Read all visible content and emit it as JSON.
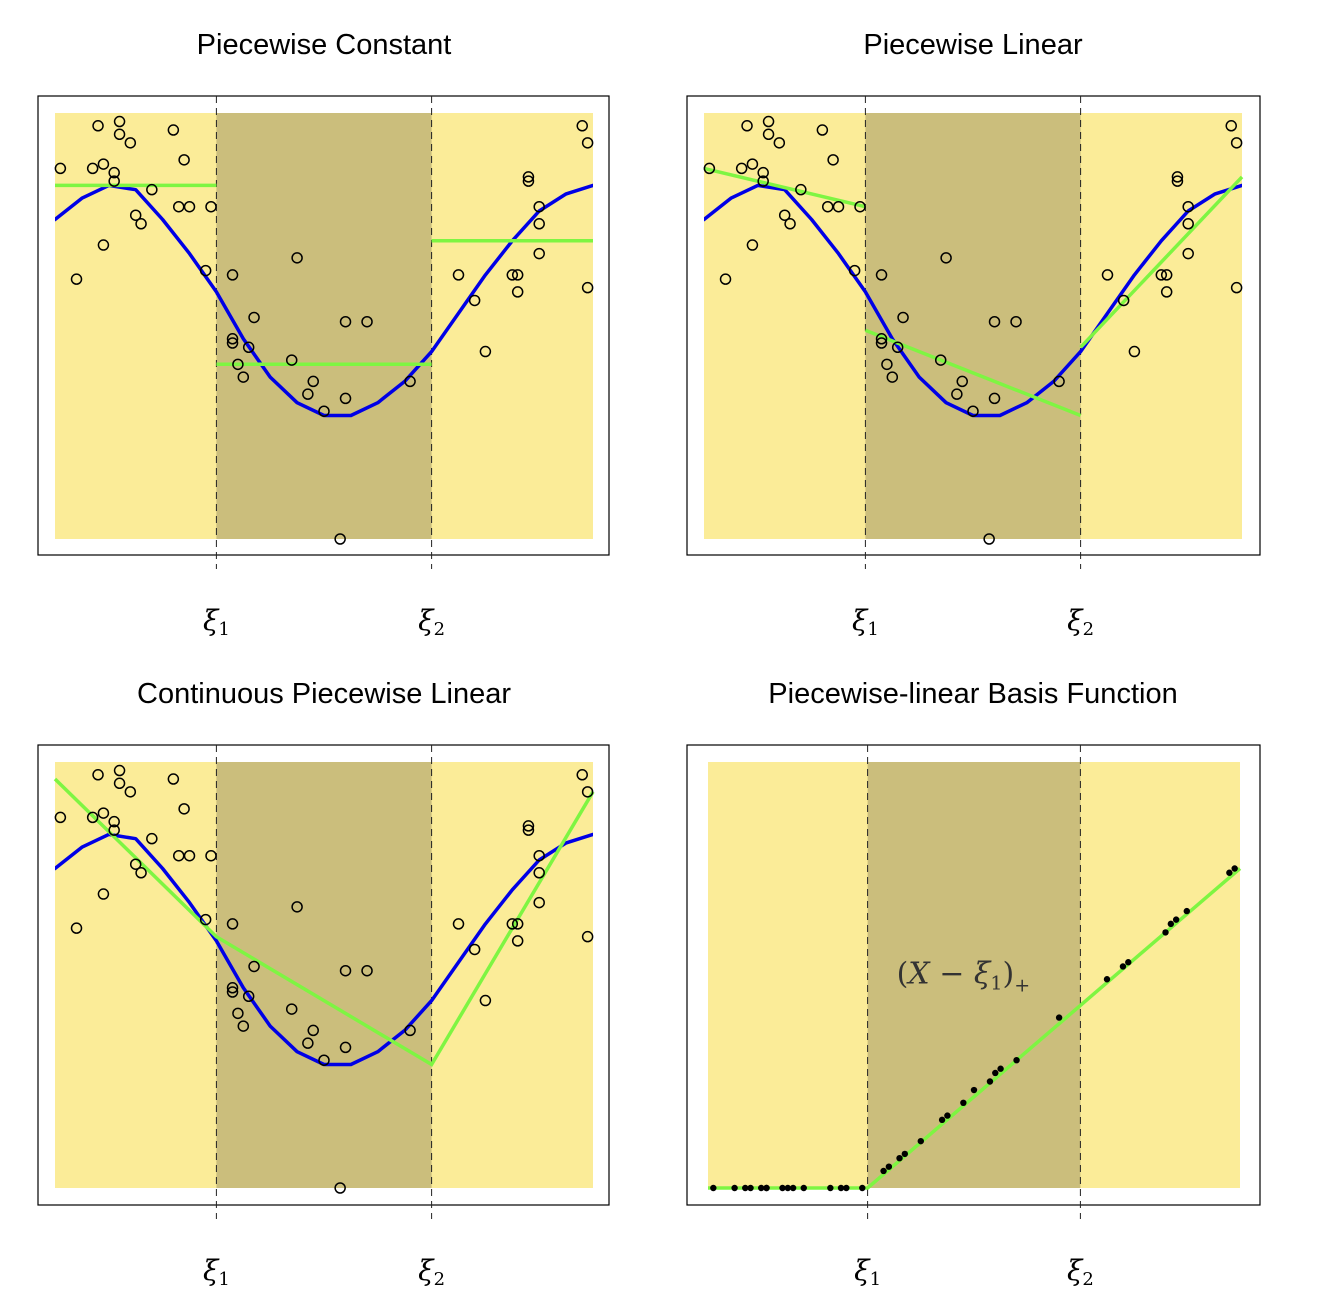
{
  "colors": {
    "outer_region": "#fbec98",
    "middle_region": "#cbbe7c",
    "true_function": "#0000e6",
    "fit": "#7ef542",
    "points": "#000000",
    "frame": "#000000"
  },
  "chart_data": [
    {
      "type": "scatter",
      "title": "Piecewise Constant",
      "xlim": [
        0,
        1
      ],
      "ylim": [
        0,
        1
      ],
      "knots": [
        {
          "x": 0.3,
          "symbol": "ξ",
          "sub": "1"
        },
        {
          "x": 0.7,
          "symbol": "ξ",
          "sub": "2"
        }
      ],
      "points_style": "open",
      "points": [
        [
          0.01,
          0.87
        ],
        [
          0.04,
          0.61
        ],
        [
          0.07,
          0.87
        ],
        [
          0.08,
          0.97
        ],
        [
          0.09,
          0.88
        ],
        [
          0.12,
          0.95
        ],
        [
          0.09,
          0.69
        ],
        [
          0.11,
          0.84
        ],
        [
          0.14,
          0.93
        ],
        [
          0.12,
          0.98
        ],
        [
          0.11,
          0.86
        ],
        [
          0.15,
          0.76
        ],
        [
          0.16,
          0.74
        ],
        [
          0.18,
          0.82
        ],
        [
          0.22,
          0.96
        ],
        [
          0.24,
          0.89
        ],
        [
          0.23,
          0.78
        ],
        [
          0.25,
          0.78
        ],
        [
          0.29,
          0.78
        ],
        [
          0.28,
          0.63
        ],
        [
          0.33,
          0.62
        ],
        [
          0.33,
          0.47
        ],
        [
          0.33,
          0.46
        ],
        [
          0.36,
          0.45
        ],
        [
          0.37,
          0.52
        ],
        [
          0.34,
          0.41
        ],
        [
          0.35,
          0.38
        ],
        [
          0.45,
          0.66
        ],
        [
          0.44,
          0.42
        ],
        [
          0.48,
          0.37
        ],
        [
          0.47,
          0.34
        ],
        [
          0.5,
          0.3
        ],
        [
          0.53,
          0.0
        ],
        [
          0.54,
          0.51
        ],
        [
          0.54,
          0.33
        ],
        [
          0.58,
          0.51
        ],
        [
          0.66,
          0.37
        ],
        [
          0.75,
          0.62
        ],
        [
          0.78,
          0.56
        ],
        [
          0.8,
          0.44
        ],
        [
          0.85,
          0.62
        ],
        [
          0.86,
          0.62
        ],
        [
          0.86,
          0.58
        ],
        [
          0.88,
          0.84
        ],
        [
          0.88,
          0.85
        ],
        [
          0.9,
          0.78
        ],
        [
          0.9,
          0.74
        ],
        [
          0.9,
          0.67
        ],
        [
          0.98,
          0.97
        ],
        [
          0.99,
          0.93
        ],
        [
          0.99,
          0.59
        ]
      ],
      "truth": [
        [
          0.0,
          0.75
        ],
        [
          0.05,
          0.8
        ],
        [
          0.1,
          0.83
        ],
        [
          0.15,
          0.82
        ],
        [
          0.2,
          0.75
        ],
        [
          0.25,
          0.67
        ],
        [
          0.3,
          0.58
        ],
        [
          0.35,
          0.47
        ],
        [
          0.4,
          0.38
        ],
        [
          0.45,
          0.32
        ],
        [
          0.5,
          0.29
        ],
        [
          0.55,
          0.29
        ],
        [
          0.6,
          0.32
        ],
        [
          0.65,
          0.37
        ],
        [
          0.7,
          0.44
        ],
        [
          0.75,
          0.53
        ],
        [
          0.8,
          0.62
        ],
        [
          0.85,
          0.7
        ],
        [
          0.9,
          0.77
        ],
        [
          0.95,
          0.81
        ],
        [
          1.0,
          0.83
        ]
      ],
      "fit_segments": [
        [
          [
            0.0,
            0.83
          ],
          [
            0.3,
            0.83
          ]
        ],
        [
          [
            0.3,
            0.41
          ],
          [
            0.7,
            0.41
          ]
        ],
        [
          [
            0.7,
            0.7
          ],
          [
            1.0,
            0.7
          ]
        ]
      ]
    },
    {
      "type": "scatter",
      "title": "Piecewise Linear",
      "xlim": [
        0,
        1
      ],
      "ylim": [
        0,
        1
      ],
      "knots": [
        {
          "x": 0.3,
          "symbol": "ξ",
          "sub": "1"
        },
        {
          "x": 0.7,
          "symbol": "ξ",
          "sub": "2"
        }
      ],
      "points_style": "open",
      "points": [
        [
          0.01,
          0.87
        ],
        [
          0.04,
          0.61
        ],
        [
          0.07,
          0.87
        ],
        [
          0.08,
          0.97
        ],
        [
          0.09,
          0.88
        ],
        [
          0.12,
          0.95
        ],
        [
          0.09,
          0.69
        ],
        [
          0.11,
          0.84
        ],
        [
          0.14,
          0.93
        ],
        [
          0.12,
          0.98
        ],
        [
          0.11,
          0.86
        ],
        [
          0.15,
          0.76
        ],
        [
          0.16,
          0.74
        ],
        [
          0.18,
          0.82
        ],
        [
          0.22,
          0.96
        ],
        [
          0.24,
          0.89
        ],
        [
          0.23,
          0.78
        ],
        [
          0.25,
          0.78
        ],
        [
          0.29,
          0.78
        ],
        [
          0.28,
          0.63
        ],
        [
          0.33,
          0.62
        ],
        [
          0.33,
          0.47
        ],
        [
          0.33,
          0.46
        ],
        [
          0.36,
          0.45
        ],
        [
          0.37,
          0.52
        ],
        [
          0.34,
          0.41
        ],
        [
          0.35,
          0.38
        ],
        [
          0.45,
          0.66
        ],
        [
          0.44,
          0.42
        ],
        [
          0.48,
          0.37
        ],
        [
          0.47,
          0.34
        ],
        [
          0.5,
          0.3
        ],
        [
          0.53,
          0.0
        ],
        [
          0.54,
          0.51
        ],
        [
          0.54,
          0.33
        ],
        [
          0.58,
          0.51
        ],
        [
          0.66,
          0.37
        ],
        [
          0.75,
          0.62
        ],
        [
          0.78,
          0.56
        ],
        [
          0.8,
          0.44
        ],
        [
          0.85,
          0.62
        ],
        [
          0.86,
          0.62
        ],
        [
          0.86,
          0.58
        ],
        [
          0.88,
          0.84
        ],
        [
          0.88,
          0.85
        ],
        [
          0.9,
          0.78
        ],
        [
          0.9,
          0.74
        ],
        [
          0.9,
          0.67
        ],
        [
          0.98,
          0.97
        ],
        [
          0.99,
          0.93
        ],
        [
          0.99,
          0.59
        ]
      ],
      "truth": [
        [
          0.0,
          0.75
        ],
        [
          0.05,
          0.8
        ],
        [
          0.1,
          0.83
        ],
        [
          0.15,
          0.82
        ],
        [
          0.2,
          0.75
        ],
        [
          0.25,
          0.67
        ],
        [
          0.3,
          0.58
        ],
        [
          0.35,
          0.47
        ],
        [
          0.4,
          0.38
        ],
        [
          0.45,
          0.32
        ],
        [
          0.5,
          0.29
        ],
        [
          0.55,
          0.29
        ],
        [
          0.6,
          0.32
        ],
        [
          0.65,
          0.37
        ],
        [
          0.7,
          0.44
        ],
        [
          0.75,
          0.53
        ],
        [
          0.8,
          0.62
        ],
        [
          0.85,
          0.7
        ],
        [
          0.9,
          0.77
        ],
        [
          0.95,
          0.81
        ],
        [
          1.0,
          0.83
        ]
      ],
      "fit_segments": [
        [
          [
            0.0,
            0.87
          ],
          [
            0.3,
            0.78
          ]
        ],
        [
          [
            0.3,
            0.49
          ],
          [
            0.7,
            0.29
          ]
        ],
        [
          [
            0.7,
            0.45
          ],
          [
            1.0,
            0.85
          ]
        ]
      ]
    },
    {
      "type": "scatter",
      "title": "Continuous Piecewise Linear",
      "xlim": [
        0,
        1
      ],
      "ylim": [
        0,
        1
      ],
      "knots": [
        {
          "x": 0.3,
          "symbol": "ξ",
          "sub": "1"
        },
        {
          "x": 0.7,
          "symbol": "ξ",
          "sub": "2"
        }
      ],
      "points_style": "open",
      "points": [
        [
          0.01,
          0.87
        ],
        [
          0.04,
          0.61
        ],
        [
          0.07,
          0.87
        ],
        [
          0.08,
          0.97
        ],
        [
          0.09,
          0.88
        ],
        [
          0.12,
          0.95
        ],
        [
          0.09,
          0.69
        ],
        [
          0.11,
          0.84
        ],
        [
          0.14,
          0.93
        ],
        [
          0.12,
          0.98
        ],
        [
          0.11,
          0.86
        ],
        [
          0.15,
          0.76
        ],
        [
          0.16,
          0.74
        ],
        [
          0.18,
          0.82
        ],
        [
          0.22,
          0.96
        ],
        [
          0.24,
          0.89
        ],
        [
          0.23,
          0.78
        ],
        [
          0.25,
          0.78
        ],
        [
          0.29,
          0.78
        ],
        [
          0.28,
          0.63
        ],
        [
          0.33,
          0.62
        ],
        [
          0.33,
          0.47
        ],
        [
          0.33,
          0.46
        ],
        [
          0.36,
          0.45
        ],
        [
          0.37,
          0.52
        ],
        [
          0.34,
          0.41
        ],
        [
          0.35,
          0.38
        ],
        [
          0.45,
          0.66
        ],
        [
          0.44,
          0.42
        ],
        [
          0.48,
          0.37
        ],
        [
          0.47,
          0.34
        ],
        [
          0.5,
          0.3
        ],
        [
          0.53,
          0.0
        ],
        [
          0.54,
          0.51
        ],
        [
          0.54,
          0.33
        ],
        [
          0.58,
          0.51
        ],
        [
          0.66,
          0.37
        ],
        [
          0.75,
          0.62
        ],
        [
          0.78,
          0.56
        ],
        [
          0.8,
          0.44
        ],
        [
          0.85,
          0.62
        ],
        [
          0.86,
          0.62
        ],
        [
          0.86,
          0.58
        ],
        [
          0.88,
          0.84
        ],
        [
          0.88,
          0.85
        ],
        [
          0.9,
          0.78
        ],
        [
          0.9,
          0.74
        ],
        [
          0.9,
          0.67
        ],
        [
          0.98,
          0.97
        ],
        [
          0.99,
          0.93
        ],
        [
          0.99,
          0.59
        ]
      ],
      "truth": [
        [
          0.0,
          0.75
        ],
        [
          0.05,
          0.8
        ],
        [
          0.1,
          0.83
        ],
        [
          0.15,
          0.82
        ],
        [
          0.2,
          0.75
        ],
        [
          0.25,
          0.67
        ],
        [
          0.3,
          0.58
        ],
        [
          0.35,
          0.47
        ],
        [
          0.4,
          0.38
        ],
        [
          0.45,
          0.32
        ],
        [
          0.5,
          0.29
        ],
        [
          0.55,
          0.29
        ],
        [
          0.6,
          0.32
        ],
        [
          0.65,
          0.37
        ],
        [
          0.7,
          0.44
        ],
        [
          0.75,
          0.53
        ],
        [
          0.8,
          0.62
        ],
        [
          0.85,
          0.7
        ],
        [
          0.9,
          0.77
        ],
        [
          0.95,
          0.81
        ],
        [
          1.0,
          0.83
        ]
      ],
      "fit_segments": [
        [
          [
            0.0,
            0.96
          ],
          [
            0.3,
            0.59
          ],
          [
            0.7,
            0.29
          ],
          [
            1.0,
            0.93
          ]
        ]
      ]
    },
    {
      "type": "scatter",
      "title": "Piecewise-linear Basis Function",
      "xlim": [
        0,
        1
      ],
      "ylim": [
        0,
        1
      ],
      "knots": [
        {
          "x": 0.3,
          "symbol": "ξ",
          "sub": "1"
        },
        {
          "x": 0.7,
          "symbol": "ξ",
          "sub": "2"
        }
      ],
      "annotation": {
        "x": 0.48,
        "y": 0.48,
        "pre": "(",
        "var": "X",
        "mid": " − ",
        "sym": "ξ",
        "sub": "1",
        "post": ")",
        "plus": "+"
      },
      "points_style": "filled",
      "points": [
        [
          0.01,
          0.0
        ],
        [
          0.05,
          0.0
        ],
        [
          0.07,
          0.0
        ],
        [
          0.08,
          0.0
        ],
        [
          0.1,
          0.0
        ],
        [
          0.11,
          0.0
        ],
        [
          0.11,
          0.0
        ],
        [
          0.14,
          0.0
        ],
        [
          0.15,
          0.0
        ],
        [
          0.16,
          0.0
        ],
        [
          0.18,
          0.0
        ],
        [
          0.23,
          0.0
        ],
        [
          0.25,
          0.0
        ],
        [
          0.26,
          0.0
        ],
        [
          0.29,
          0.0
        ],
        [
          0.33,
          0.04
        ],
        [
          0.34,
          0.05
        ],
        [
          0.36,
          0.07
        ],
        [
          0.37,
          0.08
        ],
        [
          0.4,
          0.11
        ],
        [
          0.44,
          0.16
        ],
        [
          0.45,
          0.17
        ],
        [
          0.48,
          0.2
        ],
        [
          0.5,
          0.23
        ],
        [
          0.53,
          0.25
        ],
        [
          0.54,
          0.27
        ],
        [
          0.55,
          0.28
        ],
        [
          0.58,
          0.3
        ],
        [
          0.66,
          0.4
        ],
        [
          0.75,
          0.49
        ],
        [
          0.78,
          0.52
        ],
        [
          0.79,
          0.53
        ],
        [
          0.86,
          0.6
        ],
        [
          0.87,
          0.62
        ],
        [
          0.88,
          0.63
        ],
        [
          0.9,
          0.65
        ],
        [
          0.98,
          0.74
        ],
        [
          0.99,
          0.75
        ]
      ],
      "fit_segments": [
        [
          [
            0.0,
            0.0
          ],
          [
            0.3,
            0.0
          ],
          [
            1.0,
            0.75
          ]
        ]
      ]
    }
  ]
}
